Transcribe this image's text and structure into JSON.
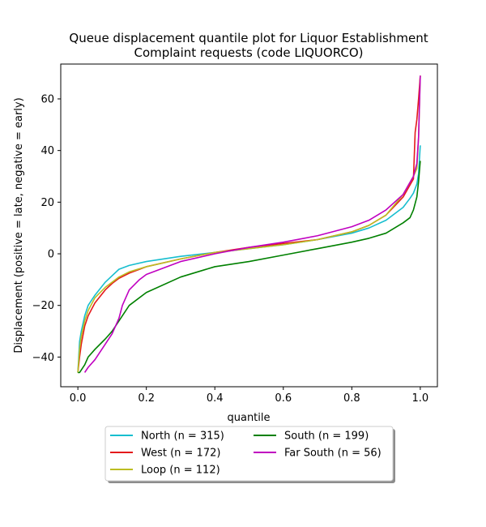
{
  "chart_data": {
    "type": "line",
    "title_line1": "Queue displacement quantile plot for Liquor Establishment",
    "title_line2": "Complaint  requests (code LIQUORCO)",
    "xlabel": "quantile",
    "ylabel": "Displacement (positive = late, negative = early)",
    "xlim": [
      -0.05,
      1.05
    ],
    "ylim": [
      -51.5,
      73.5
    ],
    "xticks": [
      0.0,
      0.2,
      0.4,
      0.6,
      0.8,
      1.0
    ],
    "xtick_labels": [
      "0.0",
      "0.2",
      "0.4",
      "0.6",
      "0.8",
      "1.0"
    ],
    "yticks": [
      -40,
      -20,
      0,
      20,
      40,
      60
    ],
    "ytick_labels": [
      "−40",
      "−20",
      "0",
      "20",
      "40",
      "60"
    ],
    "grid": false,
    "legend_placement": "below plot, two columns",
    "series": [
      {
        "name": "North (n = 315)",
        "color": "#17becf",
        "points": [
          [
            0.0,
            -46
          ],
          [
            0.005,
            -34
          ],
          [
            0.01,
            -30
          ],
          [
            0.015,
            -27
          ],
          [
            0.02,
            -24
          ],
          [
            0.03,
            -20
          ],
          [
            0.05,
            -16
          ],
          [
            0.08,
            -11
          ],
          [
            0.1,
            -8.5
          ],
          [
            0.12,
            -6
          ],
          [
            0.15,
            -4.5
          ],
          [
            0.2,
            -3
          ],
          [
            0.3,
            -1
          ],
          [
            0.4,
            0.5
          ],
          [
            0.5,
            2
          ],
          [
            0.6,
            3.5
          ],
          [
            0.7,
            5.5
          ],
          [
            0.8,
            8
          ],
          [
            0.85,
            10
          ],
          [
            0.9,
            13
          ],
          [
            0.95,
            18
          ],
          [
            0.97,
            21.5
          ],
          [
            0.98,
            23.5
          ],
          [
            0.99,
            27
          ],
          [
            0.995,
            31
          ],
          [
            1.0,
            42
          ]
        ]
      },
      {
        "name": "West (n = 172)",
        "color": "#e41a1c",
        "points": [
          [
            0.0,
            -46
          ],
          [
            0.005,
            -40
          ],
          [
            0.01,
            -35
          ],
          [
            0.02,
            -28
          ],
          [
            0.03,
            -24
          ],
          [
            0.05,
            -19
          ],
          [
            0.08,
            -14
          ],
          [
            0.1,
            -11.5
          ],
          [
            0.12,
            -9.5
          ],
          [
            0.15,
            -7.5
          ],
          [
            0.2,
            -5
          ],
          [
            0.3,
            -2
          ],
          [
            0.4,
            0.5
          ],
          [
            0.5,
            2.5
          ],
          [
            0.6,
            4
          ],
          [
            0.7,
            5.5
          ],
          [
            0.8,
            8.5
          ],
          [
            0.85,
            11
          ],
          [
            0.9,
            15
          ],
          [
            0.95,
            22
          ],
          [
            0.98,
            29
          ],
          [
            0.985,
            47
          ],
          [
            0.99,
            52
          ],
          [
            0.995,
            60
          ],
          [
            1.0,
            69
          ]
        ]
      },
      {
        "name": "Loop (n = 112)",
        "color": "#bcbd22",
        "points": [
          [
            0.0,
            -46
          ],
          [
            0.005,
            -37
          ],
          [
            0.01,
            -32
          ],
          [
            0.02,
            -26
          ],
          [
            0.03,
            -22
          ],
          [
            0.05,
            -17
          ],
          [
            0.08,
            -13
          ],
          [
            0.1,
            -11
          ],
          [
            0.12,
            -9
          ],
          [
            0.15,
            -7
          ],
          [
            0.2,
            -5
          ],
          [
            0.3,
            -2
          ],
          [
            0.4,
            0.5
          ],
          [
            0.5,
            2
          ],
          [
            0.6,
            3.5
          ],
          [
            0.7,
            5.5
          ],
          [
            0.8,
            8.5
          ],
          [
            0.85,
            11
          ],
          [
            0.9,
            15
          ],
          [
            0.95,
            23
          ],
          [
            0.98,
            30
          ],
          [
            0.99,
            33
          ],
          [
            0.995,
            45
          ],
          [
            1.0,
            69
          ]
        ]
      },
      {
        "name": "South (n = 199)",
        "color": "#008000",
        "points": [
          [
            0.0,
            -46
          ],
          [
            0.005,
            -46
          ],
          [
            0.01,
            -45
          ],
          [
            0.02,
            -43
          ],
          [
            0.03,
            -40
          ],
          [
            0.05,
            -37
          ],
          [
            0.08,
            -33
          ],
          [
            0.1,
            -30
          ],
          [
            0.12,
            -26
          ],
          [
            0.15,
            -20
          ],
          [
            0.2,
            -15
          ],
          [
            0.3,
            -9
          ],
          [
            0.4,
            -5
          ],
          [
            0.5,
            -3
          ],
          [
            0.6,
            -0.5
          ],
          [
            0.7,
            2
          ],
          [
            0.8,
            4.5
          ],
          [
            0.85,
            6
          ],
          [
            0.9,
            8
          ],
          [
            0.95,
            12
          ],
          [
            0.97,
            14
          ],
          [
            0.98,
            17
          ],
          [
            0.99,
            22
          ],
          [
            0.995,
            28
          ],
          [
            1.0,
            36
          ]
        ]
      },
      {
        "name": "Far South (n = 56)",
        "color": "#c000c0",
        "points": [
          [
            0.02,
            -46
          ],
          [
            0.03,
            -44
          ],
          [
            0.05,
            -41
          ],
          [
            0.07,
            -37
          ],
          [
            0.1,
            -31
          ],
          [
            0.12,
            -25
          ],
          [
            0.13,
            -20
          ],
          [
            0.15,
            -14
          ],
          [
            0.18,
            -10
          ],
          [
            0.2,
            -8
          ],
          [
            0.3,
            -3
          ],
          [
            0.4,
            0
          ],
          [
            0.5,
            2.5
          ],
          [
            0.6,
            4.5
          ],
          [
            0.7,
            7
          ],
          [
            0.8,
            10.5
          ],
          [
            0.85,
            13
          ],
          [
            0.9,
            17
          ],
          [
            0.95,
            23
          ],
          [
            0.98,
            30
          ],
          [
            0.99,
            35
          ],
          [
            0.995,
            45
          ],
          [
            1.0,
            69
          ]
        ]
      }
    ]
  }
}
